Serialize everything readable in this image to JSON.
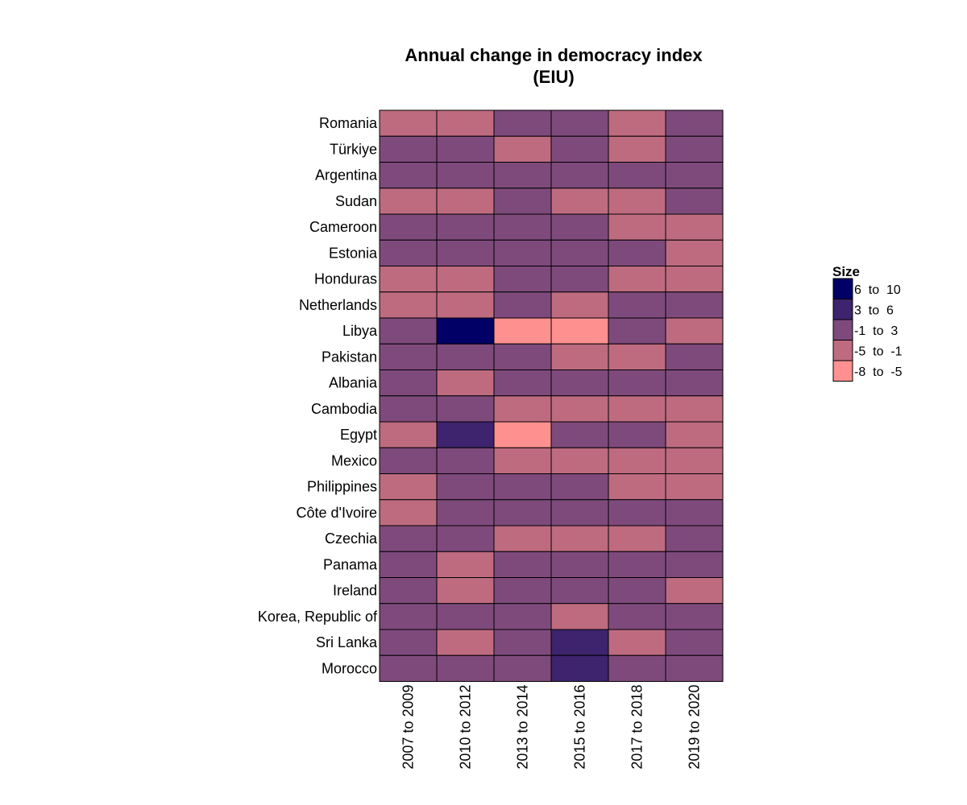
{
  "chart_data": {
    "type": "heatmap",
    "title_lines": [
      "Annual change in democracy index",
      "(EIU)"
    ],
    "columns": [
      "2007 to 2009",
      "2010 to 2012",
      "2013 to 2014",
      "2015 to 2016",
      "2017 to 2018",
      "2019 to 2020"
    ],
    "rows": [
      "Romania",
      "Türkiye",
      "Argentina",
      "Sudan",
      "Cameroon",
      "Estonia",
      "Honduras",
      "Netherlands",
      "Libya",
      "Pakistan",
      "Albania",
      "Cambodia",
      "Egypt",
      "Mexico",
      "Philippines",
      "Côte d'Ivoire",
      "Czechia",
      "Panama",
      "Ireland",
      "Korea, Republic of",
      "Sri Lanka",
      "Morocco"
    ],
    "values": [
      [
        "-5 to -1",
        "-5 to -1",
        "-1 to 3",
        "-1 to 3",
        "-5 to -1",
        "-1 to 3"
      ],
      [
        "-1 to 3",
        "-1 to 3",
        "-5 to -1",
        "-1 to 3",
        "-5 to -1",
        "-1 to 3"
      ],
      [
        "-1 to 3",
        "-1 to 3",
        "-1 to 3",
        "-1 to 3",
        "-1 to 3",
        "-1 to 3"
      ],
      [
        "-5 to -1",
        "-5 to -1",
        "-1 to 3",
        "-5 to -1",
        "-5 to -1",
        "-1 to 3"
      ],
      [
        "-1 to 3",
        "-1 to 3",
        "-1 to 3",
        "-1 to 3",
        "-5 to -1",
        "-5 to -1"
      ],
      [
        "-1 to 3",
        "-1 to 3",
        "-1 to 3",
        "-1 to 3",
        "-1 to 3",
        "-5 to -1"
      ],
      [
        "-5 to -1",
        "-5 to -1",
        "-1 to 3",
        "-1 to 3",
        "-5 to -1",
        "-5 to -1"
      ],
      [
        "-5 to -1",
        "-5 to -1",
        "-1 to 3",
        "-5 to -1",
        "-1 to 3",
        "-1 to 3"
      ],
      [
        "-1 to 3",
        "6 to 10",
        "-8 to -5",
        "-8 to -5",
        "-1 to 3",
        "-5 to -1"
      ],
      [
        "-1 to 3",
        "-1 to 3",
        "-1 to 3",
        "-5 to -1",
        "-5 to -1",
        "-1 to 3"
      ],
      [
        "-1 to 3",
        "-5 to -1",
        "-1 to 3",
        "-1 to 3",
        "-1 to 3",
        "-1 to 3"
      ],
      [
        "-1 to 3",
        "-1 to 3",
        "-5 to -1",
        "-5 to -1",
        "-5 to -1",
        "-5 to -1"
      ],
      [
        "-5 to -1",
        "3 to 6",
        "-8 to -5",
        "-1 to 3",
        "-1 to 3",
        "-5 to -1"
      ],
      [
        "-1 to 3",
        "-1 to 3",
        "-5 to -1",
        "-5 to -1",
        "-5 to -1",
        "-5 to -1"
      ],
      [
        "-5 to -1",
        "-1 to 3",
        "-1 to 3",
        "-1 to 3",
        "-5 to -1",
        "-5 to -1"
      ],
      [
        "-5 to -1",
        "-1 to 3",
        "-1 to 3",
        "-1 to 3",
        "-1 to 3",
        "-1 to 3"
      ],
      [
        "-1 to 3",
        "-1 to 3",
        "-5 to -1",
        "-5 to -1",
        "-5 to -1",
        "-1 to 3"
      ],
      [
        "-1 to 3",
        "-5 to -1",
        "-1 to 3",
        "-1 to 3",
        "-1 to 3",
        "-1 to 3"
      ],
      [
        "-1 to 3",
        "-5 to -1",
        "-1 to 3",
        "-1 to 3",
        "-1 to 3",
        "-5 to -1"
      ],
      [
        "-1 to 3",
        "-1 to 3",
        "-1 to 3",
        "-5 to -1",
        "-1 to 3",
        "-1 to 3"
      ],
      [
        "-1 to 3",
        "-5 to -1",
        "-1 to 3",
        "3 to 6",
        "-5 to -1",
        "-1 to 3"
      ],
      [
        "-1 to 3",
        "-1 to 3",
        "-1 to 3",
        "3 to 6",
        "-1 to 3",
        "-1 to 3"
      ]
    ],
    "legend": {
      "title": "Size",
      "placement": "right",
      "bins": [
        {
          "label": "6  to  10",
          "key": "6 to 10",
          "color": "#000066"
        },
        {
          "label": "3  to  6",
          "key": "3 to 6",
          "color": "#3e236e"
        },
        {
          "label": "-1  to  3",
          "key": "-1 to 3",
          "color": "#7e4a7c"
        },
        {
          "label": "-5  to  -1",
          "key": "-5 to -1",
          "color": "#be6b80"
        },
        {
          "label": "-8  to  -5",
          "key": "-8 to -5",
          "color": "#fe9190"
        }
      ]
    },
    "grid": false
  }
}
